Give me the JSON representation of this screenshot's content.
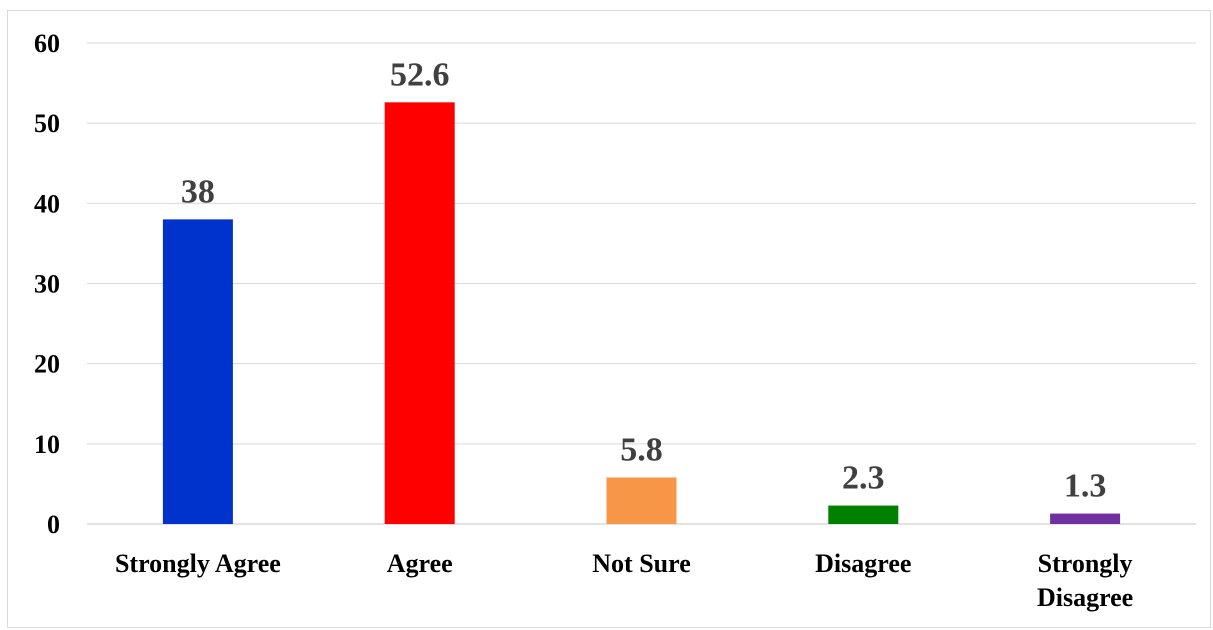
{
  "chart_data": {
    "type": "bar",
    "title": "",
    "xlabel": "",
    "ylabel": "",
    "categories": [
      "Strongly Agree",
      "Agree",
      "Not Sure",
      "Disagree",
      "Strongly Disagree"
    ],
    "category_lines": [
      [
        "Strongly Agree"
      ],
      [
        "Agree"
      ],
      [
        "Not Sure"
      ],
      [
        "Disagree"
      ],
      [
        "Strongly",
        "Disagree"
      ]
    ],
    "values": [
      38,
      52.6,
      5.8,
      2.3,
      1.3
    ],
    "data_labels": [
      "38",
      "52.6",
      "5.8",
      "2.3",
      "1.3"
    ],
    "colors": [
      "#0033cc",
      "#ff0000",
      "#f79646",
      "#008000",
      "#7030a0"
    ],
    "ylim": [
      0,
      60
    ],
    "yticks": [
      0,
      10,
      20,
      30,
      40,
      50,
      60
    ],
    "grid": true,
    "legend": "none"
  }
}
